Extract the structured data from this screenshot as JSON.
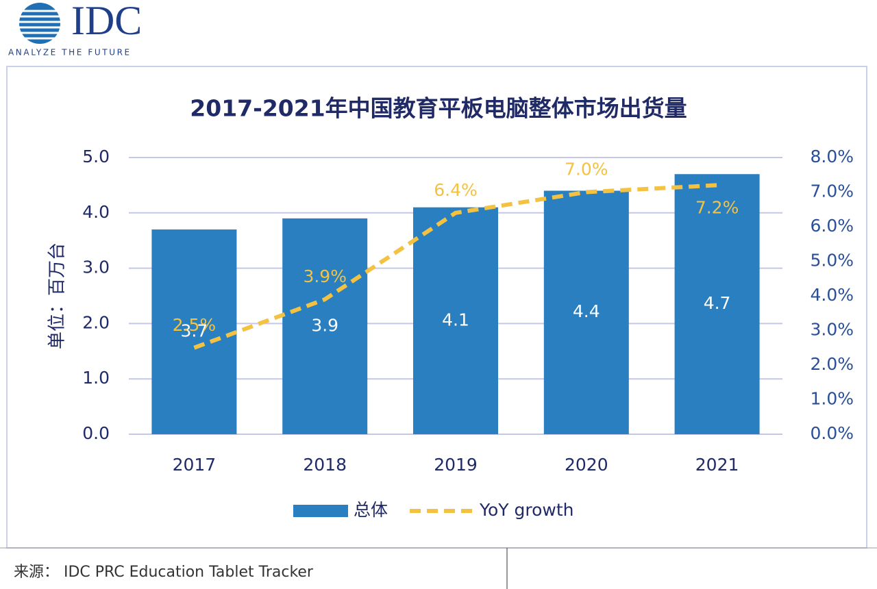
{
  "logo": {
    "text": "IDC",
    "tagline": "ANALYZE THE FUTURE"
  },
  "chart_data": {
    "type": "bar-line",
    "title": "2017-2021年中国教育平板电脑整体市场出货量",
    "y_label": "单位：百万台",
    "categories": [
      "2017",
      "2018",
      "2019",
      "2020",
      "2021"
    ],
    "series": [
      {
        "name": "总体",
        "type": "bar",
        "color": "#2a7fc1",
        "values": [
          3.7,
          3.9,
          4.1,
          4.4,
          4.7
        ]
      },
      {
        "name": "YoY growth",
        "type": "line",
        "axis": "y2",
        "color": "#f3c243",
        "dashed": true,
        "values": [
          2.5,
          3.9,
          6.4,
          7.0,
          7.2
        ],
        "value_labels": [
          "2.5%",
          "3.9%",
          "6.4%",
          "7.0%",
          "7.2%"
        ]
      }
    ],
    "ylim": [
      0,
      5
    ],
    "yticks": [
      {
        "value": 0,
        "label": "0.0"
      },
      {
        "value": 1,
        "label": "1.0"
      },
      {
        "value": 2,
        "label": "2.0"
      },
      {
        "value": 3,
        "label": "3.0"
      },
      {
        "value": 4,
        "label": "4.0"
      },
      {
        "value": 5,
        "label": "5.0"
      }
    ],
    "y2lim": [
      0,
      8
    ],
    "y2ticks": [
      {
        "value": 0,
        "label": "0.0%"
      },
      {
        "value": 1,
        "label": "1.0%"
      },
      {
        "value": 2,
        "label": "2.0%"
      },
      {
        "value": 3,
        "label": "3.0%"
      },
      {
        "value": 4,
        "label": "4.0%"
      },
      {
        "value": 5,
        "label": "5.0%"
      },
      {
        "value": 6,
        "label": "6.0%"
      },
      {
        "value": 7,
        "label": "7.0%"
      },
      {
        "value": 8,
        "label": "8.0%"
      }
    ],
    "grid": true,
    "legend": "bottom"
  },
  "source": "来源： IDC PRC Education Tablet Tracker"
}
